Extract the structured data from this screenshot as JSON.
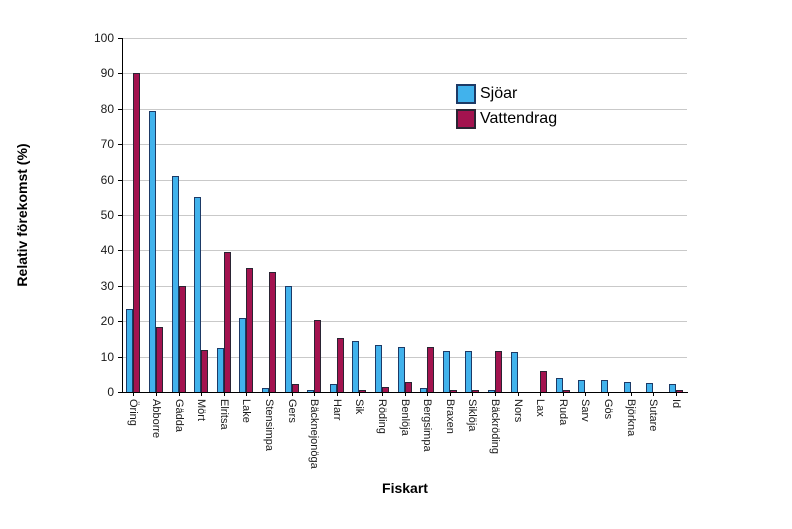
{
  "chart_data": {
    "type": "bar",
    "title": "",
    "xlabel": "Fiskart",
    "ylabel": "Relativ förekomst (%)",
    "ylim": [
      0,
      100
    ],
    "yticks": [
      0,
      10,
      20,
      30,
      40,
      50,
      60,
      70,
      80,
      90,
      100
    ],
    "grid": "horizontal",
    "legend_position": "top-right-inside",
    "categories": [
      "Öring",
      "Abborre",
      "Gädda",
      "Mört",
      "Elritsa",
      "Lake",
      "Stensimpa",
      "Gers",
      "Bäcknejonöga",
      "Harr",
      "Sik",
      "Röding",
      "Benlöja",
      "Bergsimpa",
      "Braxen",
      "Siklöja",
      "Bäckröding",
      "Nors",
      "Lax",
      "Ruda",
      "Sarv",
      "Gös",
      "Björkna",
      "Sutare",
      "Id"
    ],
    "series": [
      {
        "name": "Sjöar",
        "fill_color": "#41b2ec",
        "border_color": "#1d3a66",
        "values": [
          23.5,
          79.5,
          61,
          55,
          12.5,
          21,
          1,
          30,
          0.3,
          2.3,
          14.5,
          13.3,
          12.8,
          1,
          11.7,
          11.6,
          0.6,
          11.4,
          0,
          3.9,
          3.5,
          3.3,
          2.8,
          2.6,
          2.3
        ]
      },
      {
        "name": "Vattendrag",
        "fill_color": "#a3134f",
        "border_color": "#2a2433",
        "values": [
          90,
          18.3,
          30,
          12,
          39.5,
          35,
          34,
          2.3,
          20.3,
          15.3,
          0.5,
          1.5,
          2.8,
          12.8,
          0.3,
          0.5,
          11.5,
          0,
          6,
          0.7,
          0,
          0,
          0,
          0,
          0.6
        ]
      }
    ]
  },
  "colors": {
    "background": "#ffffff",
    "axis": "#000000",
    "gridline": "#c9c9c9",
    "text": "#1a1a1a"
  }
}
